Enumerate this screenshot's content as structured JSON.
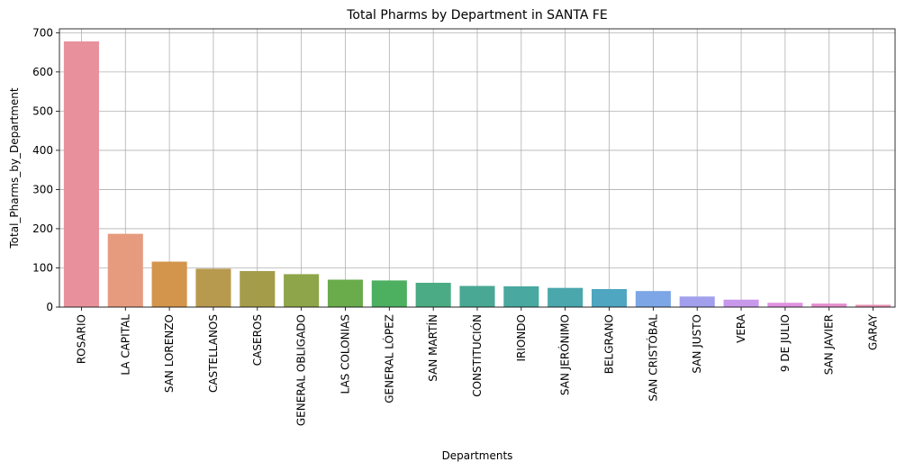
{
  "chart_data": {
    "type": "bar",
    "title": "Total Pharms by Department in SANTA FE",
    "xlabel": "Departments",
    "ylabel": "Total_Pharms_by_Department",
    "ylim": [
      0,
      710
    ],
    "yticks": [
      0,
      100,
      200,
      300,
      400,
      500,
      600,
      700
    ],
    "grid": true,
    "categories": [
      "ROSARIO",
      "LA CAPITAL",
      "SAN LORENZO",
      "CASTELLANOS",
      "CASEROS",
      "GENERAL OBLIGADO",
      "LAS COLONIAS",
      "GENERAL LÓPEZ",
      "SAN MARTÍN",
      "CONSTITUCIÓN",
      "IRIONDO",
      "SAN JERÓNIMO",
      "BELGRANO",
      "SAN CRISTÓBAL",
      "SAN JUSTO",
      "VERA",
      "9 DE JULIO",
      "SAN JAVIER",
      "GARAY"
    ],
    "values": [
      678,
      187,
      116,
      98,
      92,
      84,
      70,
      68,
      62,
      54,
      53,
      49,
      46,
      41,
      27,
      19,
      11,
      9,
      6
    ],
    "colors": [
      "#e8919c",
      "#e69a7e",
      "#d3954c",
      "#b89a4f",
      "#a59c49",
      "#8ea549",
      "#6aac4b",
      "#4daf60",
      "#4aab84",
      "#49a894",
      "#49a89f",
      "#4aa7ac",
      "#4fa6c0",
      "#7ca6e6",
      "#a2a0ec",
      "#c898ea",
      "#e092e0",
      "#e58fcd",
      "#e891b3"
    ]
  }
}
